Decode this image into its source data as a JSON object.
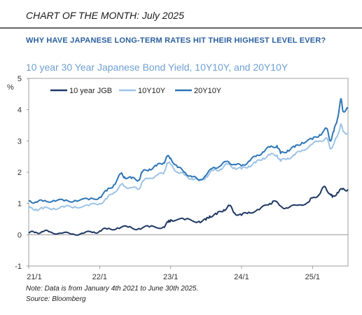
{
  "header": {
    "title": "CHART OF THE MONTH: July 2025",
    "subtitle": "WHY HAVE JAPANESE LONG-TERM RATES HIT THEIR HIGHEST LEVEL EVER?"
  },
  "colors": {
    "jgb10": "#1f3864",
    "f10y10y": "#9dc3e6",
    "f20y10y": "#2e75b6",
    "title": "#6fa0d2",
    "subtitle": "#2a5f9e"
  },
  "chart_data": {
    "type": "line",
    "title": "10 year 30 Year Japanese Bond Yield, 10Y10Y, and 20Y10Y",
    "ylabel": "%",
    "xlabel": "",
    "ylim": [
      -1,
      5
    ],
    "yticks": [
      "-1",
      "0",
      "1",
      "2",
      "3",
      "4",
      "5"
    ],
    "xticks": [
      "21/1",
      "22/1",
      "23/1",
      "24/1",
      "25/1"
    ],
    "xlim": [
      2021.0,
      2025.5
    ],
    "grid": "none",
    "legend": "top-left",
    "series": [
      {
        "name": "10 year JGB",
        "points": [
          [
            2021.0,
            0.05
          ],
          [
            2021.1,
            0.08
          ],
          [
            2021.2,
            0.1
          ],
          [
            2021.3,
            0.09
          ],
          [
            2021.45,
            0.05
          ],
          [
            2021.6,
            0.02
          ],
          [
            2021.75,
            0.05
          ],
          [
            2021.9,
            0.07
          ],
          [
            2022.0,
            0.12
          ],
          [
            2022.1,
            0.18
          ],
          [
            2022.25,
            0.22
          ],
          [
            2022.4,
            0.24
          ],
          [
            2022.55,
            0.2
          ],
          [
            2022.7,
            0.25
          ],
          [
            2022.9,
            0.25
          ],
          [
            2022.97,
            0.4
          ],
          [
            2023.0,
            0.48
          ],
          [
            2023.2,
            0.48
          ],
          [
            2023.4,
            0.43
          ],
          [
            2023.5,
            0.47
          ],
          [
            2023.55,
            0.6
          ],
          [
            2023.65,
            0.65
          ],
          [
            2023.75,
            0.8
          ],
          [
            2023.83,
            0.93
          ],
          [
            2023.9,
            0.7
          ],
          [
            2024.0,
            0.62
          ],
          [
            2024.1,
            0.72
          ],
          [
            2024.25,
            0.8
          ],
          [
            2024.4,
            1.0
          ],
          [
            2024.45,
            1.08
          ],
          [
            2024.55,
            0.92
          ],
          [
            2024.65,
            0.85
          ],
          [
            2024.8,
            0.95
          ],
          [
            2024.95,
            1.05
          ],
          [
            2025.0,
            1.18
          ],
          [
            2025.1,
            1.3
          ],
          [
            2025.17,
            1.55
          ],
          [
            2025.25,
            1.3
          ],
          [
            2025.28,
            1.2
          ],
          [
            2025.35,
            1.35
          ],
          [
            2025.42,
            1.45
          ],
          [
            2025.5,
            1.45
          ]
        ]
      },
      {
        "name": "10Y10Y",
        "points": [
          [
            2021.0,
            0.85
          ],
          [
            2021.1,
            0.82
          ],
          [
            2021.2,
            0.83
          ],
          [
            2021.35,
            0.85
          ],
          [
            2021.5,
            0.88
          ],
          [
            2021.65,
            0.9
          ],
          [
            2021.85,
            0.93
          ],
          [
            2022.0,
            1.0
          ],
          [
            2022.1,
            1.15
          ],
          [
            2022.2,
            1.35
          ],
          [
            2022.3,
            1.6
          ],
          [
            2022.35,
            1.55
          ],
          [
            2022.45,
            1.5
          ],
          [
            2022.55,
            1.45
          ],
          [
            2022.6,
            1.7
          ],
          [
            2022.7,
            1.8
          ],
          [
            2022.8,
            1.9
          ],
          [
            2022.9,
            1.95
          ],
          [
            2022.95,
            2.3
          ],
          [
            2023.0,
            2.25
          ],
          [
            2023.1,
            2.0
          ],
          [
            2023.2,
            1.9
          ],
          [
            2023.3,
            1.8
          ],
          [
            2023.4,
            1.72
          ],
          [
            2023.5,
            1.85
          ],
          [
            2023.6,
            2.05
          ],
          [
            2023.7,
            2.1
          ],
          [
            2023.8,
            2.25
          ],
          [
            2023.9,
            2.15
          ],
          [
            2024.0,
            2.1
          ],
          [
            2024.1,
            2.2
          ],
          [
            2024.2,
            2.3
          ],
          [
            2024.3,
            2.45
          ],
          [
            2024.4,
            2.55
          ],
          [
            2024.5,
            2.55
          ],
          [
            2024.55,
            2.35
          ],
          [
            2024.65,
            2.45
          ],
          [
            2024.75,
            2.55
          ],
          [
            2024.85,
            2.7
          ],
          [
            2025.0,
            2.9
          ],
          [
            2025.1,
            3.0
          ],
          [
            2025.2,
            3.1
          ],
          [
            2025.25,
            2.75
          ],
          [
            2025.3,
            2.9
          ],
          [
            2025.35,
            3.15
          ],
          [
            2025.4,
            3.55
          ],
          [
            2025.43,
            3.3
          ],
          [
            2025.5,
            3.25
          ]
        ]
      },
      {
        "name": "20Y10Y",
        "points": [
          [
            2021.0,
            1.08
          ],
          [
            2021.1,
            1.05
          ],
          [
            2021.2,
            1.07
          ],
          [
            2021.35,
            1.1
          ],
          [
            2021.5,
            1.08
          ],
          [
            2021.65,
            1.1
          ],
          [
            2021.85,
            1.12
          ],
          [
            2022.0,
            1.2
          ],
          [
            2022.1,
            1.4
          ],
          [
            2022.2,
            1.6
          ],
          [
            2022.3,
            1.95
          ],
          [
            2022.35,
            1.85
          ],
          [
            2022.45,
            1.8
          ],
          [
            2022.55,
            1.75
          ],
          [
            2022.6,
            2.0
          ],
          [
            2022.7,
            2.1
          ],
          [
            2022.8,
            2.2
          ],
          [
            2022.9,
            2.3
          ],
          [
            2022.95,
            2.5
          ],
          [
            2023.0,
            2.45
          ],
          [
            2023.1,
            2.15
          ],
          [
            2023.2,
            2.0
          ],
          [
            2023.3,
            1.85
          ],
          [
            2023.4,
            1.75
          ],
          [
            2023.5,
            1.9
          ],
          [
            2023.6,
            2.15
          ],
          [
            2023.7,
            2.2
          ],
          [
            2023.8,
            2.35
          ],
          [
            2023.9,
            2.25
          ],
          [
            2024.0,
            2.2
          ],
          [
            2024.1,
            2.35
          ],
          [
            2024.2,
            2.5
          ],
          [
            2024.3,
            2.65
          ],
          [
            2024.4,
            2.8
          ],
          [
            2024.5,
            2.85
          ],
          [
            2024.55,
            2.6
          ],
          [
            2024.65,
            2.7
          ],
          [
            2024.75,
            2.8
          ],
          [
            2024.85,
            2.95
          ],
          [
            2025.0,
            3.05
          ],
          [
            2025.1,
            3.2
          ],
          [
            2025.2,
            3.4
          ],
          [
            2025.25,
            3.0
          ],
          [
            2025.3,
            3.3
          ],
          [
            2025.35,
            3.7
          ],
          [
            2025.4,
            4.35
          ],
          [
            2025.43,
            3.95
          ],
          [
            2025.5,
            4.05
          ]
        ]
      }
    ]
  },
  "footnote": {
    "line1": "Note: Data is from January 4th 2021 to June 30th 2025.",
    "line2": "Source: Bloomberg"
  }
}
